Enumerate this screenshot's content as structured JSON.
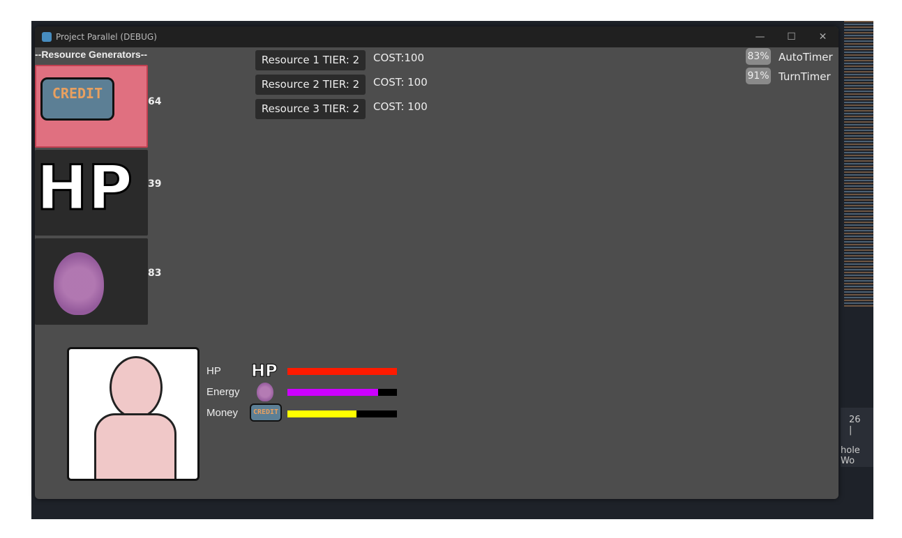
{
  "window": {
    "title": "Project Parallel (DEBUG)",
    "minimize": "—",
    "maximize": "☐",
    "close": "✕"
  },
  "generators": {
    "heading": "--Resource Generators--",
    "items": [
      {
        "icon": "credit-icon",
        "label": "CREDIT",
        "count": "64",
        "selected": true
      },
      {
        "icon": "hp-icon",
        "label": "HP",
        "count": "39"
      },
      {
        "icon": "flame-icon",
        "count": "83"
      }
    ]
  },
  "upgrades": [
    {
      "label": "Resource 1 TIER: 2",
      "cost": "COST:100"
    },
    {
      "label": "Resource 2 TIER: 2",
      "cost": "COST: 100"
    },
    {
      "label": "Resource 3 TIER: 2",
      "cost": "COST: 100"
    }
  ],
  "timers": [
    {
      "percent": "83%",
      "label": "AutoTimer"
    },
    {
      "percent": "91%",
      "label": "TurnTimer"
    }
  ],
  "stats": [
    {
      "label": "HP",
      "icon_label": "HP",
      "fill": 1.0,
      "color": "#ff1a00"
    },
    {
      "label": "Energy",
      "fill": 0.83,
      "color": "#cc00ff"
    },
    {
      "label": "Money",
      "icon_label": "CREDIT",
      "fill": 0.63,
      "color": "#ffff00"
    }
  ],
  "editor": {
    "status": "26 |",
    "text": "hole Wo"
  }
}
